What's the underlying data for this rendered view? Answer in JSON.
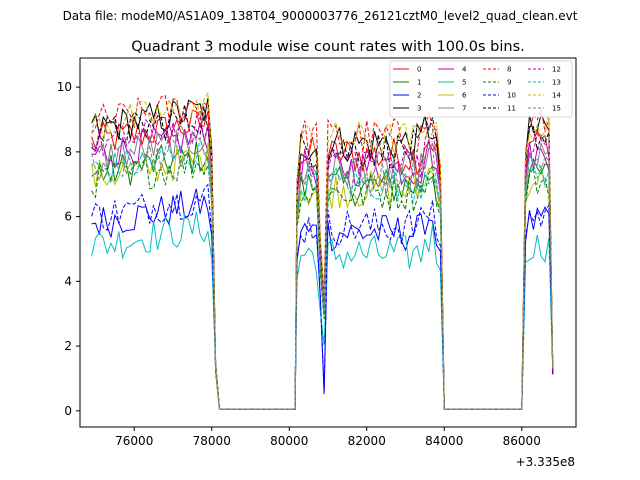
{
  "figure": {
    "suptitle": "Data file: modeM0/AS1A09_138T04_9000003776_26121cztM0_level2_quad_clean.evt",
    "title": "Quadrant 3 module wise count rates with 100.0s bins.",
    "offset_label": "+3.335e8"
  },
  "chart_data": {
    "type": "line",
    "title": "Quadrant 3 module wise count rates with 100.0s bins.",
    "xlabel": "",
    "ylabel": "",
    "x_offset": 333500000,
    "xlim": [
      74600,
      87400
    ],
    "ylim": [
      -0.5,
      10.9
    ],
    "xticks": [
      76000,
      78000,
      80000,
      82000,
      84000,
      86000
    ],
    "yticks": [
      0,
      2,
      4,
      6,
      8,
      10
    ],
    "xtick_labels": [
      "76000",
      "78000",
      "80000",
      "82000",
      "84000",
      "86000"
    ],
    "ytick_labels": [
      "0",
      "2",
      "4",
      "6",
      "8",
      "10"
    ],
    "grid": false,
    "legend_placement": "top-right",
    "bin_seconds": 100,
    "segments": [
      {
        "start": 74900,
        "end": 78100,
        "gap_after": [
          78200,
          80200
        ]
      },
      {
        "start": 80200,
        "end": 84000,
        "gap_after": [
          84000,
          86000
        ]
      },
      {
        "start": 86100,
        "end": 86800
      }
    ],
    "series": [
      {
        "name": "0",
        "color": "#ff0000",
        "dash": "solid",
        "level": 8.3
      },
      {
        "name": "1",
        "color": "#008000",
        "dash": "solid",
        "level": 7.3
      },
      {
        "name": "2",
        "color": "#0000ff",
        "dash": "solid",
        "level": 5.8
      },
      {
        "name": "3",
        "color": "#000000",
        "dash": "solid",
        "level": 8.7
      },
      {
        "name": "4",
        "color": "#bf00bf",
        "dash": "solid",
        "level": 7.9
      },
      {
        "name": "5",
        "color": "#00bfbf",
        "dash": "solid",
        "level": 5.1
      },
      {
        "name": "6",
        "color": "#bfbf00",
        "dash": "solid",
        "level": 7.2
      },
      {
        "name": "7",
        "color": "#808080",
        "dash": "solid",
        "level": 7.8
      },
      {
        "name": "8",
        "color": "#ff0000",
        "dash": "dashed",
        "level": 8.9
      },
      {
        "name": "9",
        "color": "#008000",
        "dash": "dashed",
        "level": 7.1
      },
      {
        "name": "10",
        "color": "#0000ff",
        "dash": "dashed",
        "level": 6.0
      },
      {
        "name": "11",
        "color": "#000000",
        "dash": "dashed",
        "level": 8.5
      },
      {
        "name": "12",
        "color": "#bf00bf",
        "dash": "dashed",
        "level": 8.2
      },
      {
        "name": "13",
        "color": "#00bfbf",
        "dash": "dashed",
        "level": 7.4
      },
      {
        "name": "14",
        "color": "#bfbf00",
        "dash": "dashed",
        "level": 8.8
      },
      {
        "name": "15",
        "color": "#808080",
        "dash": "dashed",
        "level": 7.6
      }
    ]
  }
}
